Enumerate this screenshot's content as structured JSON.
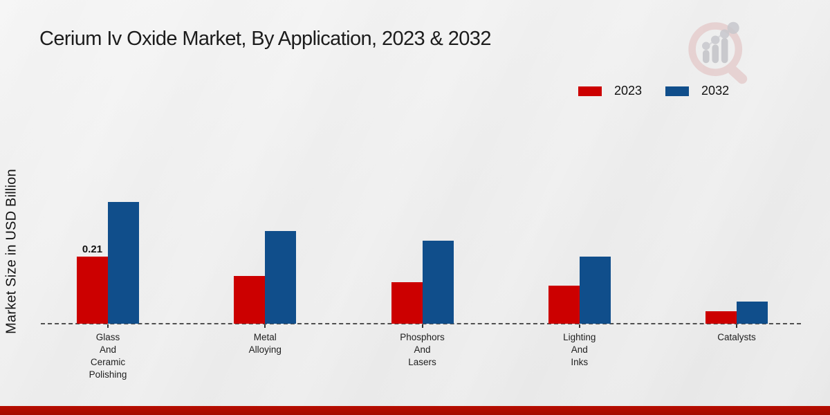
{
  "page_title": "Cerium Iv Oxide Market, By Application, 2023 & 2032",
  "chart_data": {
    "type": "bar",
    "title": "Cerium Iv Oxide Market, By Application, 2023 & 2032",
    "xlabel": "",
    "ylabel": "Market Size in USD Billion",
    "categories": [
      "Glass\nAnd\nCeramic\nPolishing",
      "Metal\nAlloying",
      "Phosphors\nAnd\nLasers",
      "Lighting\nAnd\nInks",
      "Catalysts"
    ],
    "series": [
      {
        "name": "2023",
        "color": "#cc0000",
        "values": [
          0.21,
          0.15,
          0.13,
          0.12,
          0.04
        ]
      },
      {
        "name": "2032",
        "color": "#104e8b",
        "values": [
          0.38,
          0.29,
          0.26,
          0.21,
          0.07
        ]
      }
    ],
    "annotations": [
      {
        "series_index": 0,
        "category_index": 0,
        "text": "0.21"
      }
    ],
    "ylim": [
      0,
      0.42
    ],
    "y_axis_ticks_visible": false,
    "grid": false,
    "baseline_style": "dashed",
    "legend_position": "top-right"
  },
  "branding": {
    "logo_icon": "magnifier-bar-chart-logo",
    "accent_bar_color": "#b70d00",
    "logo_ring_color": "#dfb6b6",
    "logo_bar_color": "#c3c3c8"
  }
}
